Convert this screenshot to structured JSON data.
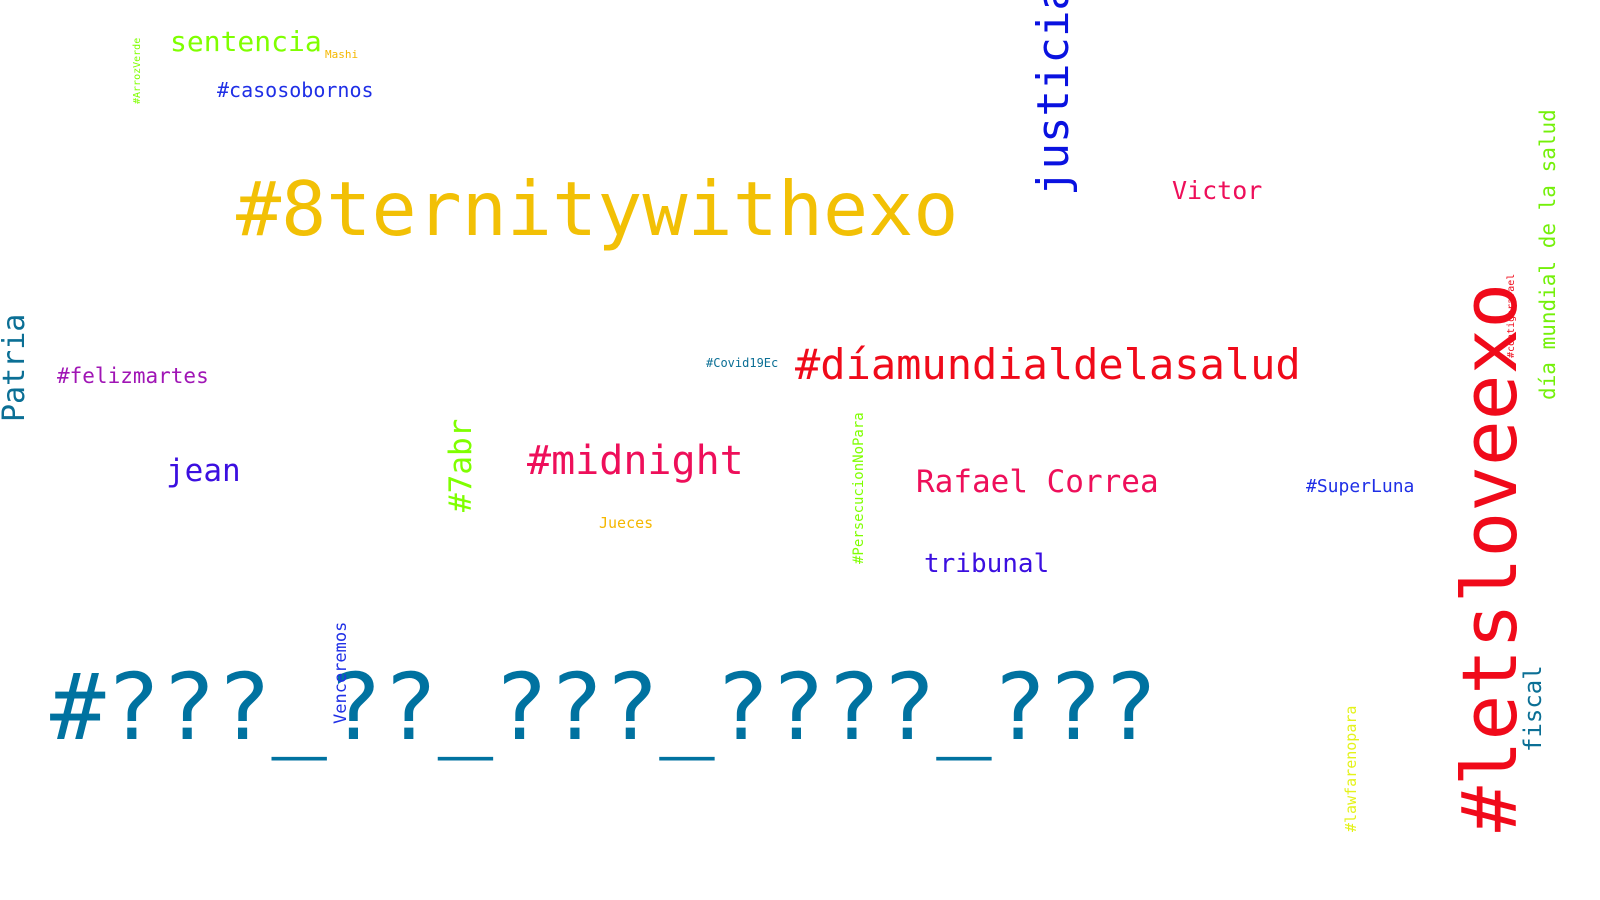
{
  "words": {
    "w01": {
      "text": "#8ternitywithexo",
      "color": "#f2c005"
    },
    "w02": {
      "text": "#???_??_???_????_???",
      "color": "#0072a0"
    },
    "w03": {
      "text": "#letsloveexo",
      "color": "#f00a1a"
    },
    "w04": {
      "text": "#díamundialdelasalud",
      "color": "#f00a1a"
    },
    "w05": {
      "text": "justicia",
      "color": "#0a12e0"
    },
    "w06": {
      "text": "#midnight",
      "color": "#ee0f5a"
    },
    "w07": {
      "text": "Rafael Correa",
      "color": "#ee0f5a"
    },
    "w08": {
      "text": "Patria",
      "color": "#0b6f95"
    },
    "w09": {
      "text": "sentencia",
      "color": "#7fff00"
    },
    "w10": {
      "text": "día mundial de la salud",
      "color": "#74f00a"
    },
    "w11": {
      "text": "jean",
      "color": "#3b0fe0"
    },
    "w12": {
      "text": "#7abr",
      "color": "#7fff00"
    },
    "w13": {
      "text": "tribunal",
      "color": "#3b0fe0"
    },
    "w14": {
      "text": "Victor",
      "color": "#ee0f5a"
    },
    "w15": {
      "text": "#felizmartes",
      "color": "#a015b5"
    },
    "w16": {
      "text": "#casosobornos",
      "color": "#1f2fe6"
    },
    "w17": {
      "text": "fiscal",
      "color": "#0b6f95"
    },
    "w18": {
      "text": "#SuperLuna",
      "color": "#1f2fe6"
    },
    "w19": {
      "text": "Venceremos",
      "color": "#1f2fe6"
    },
    "w20": {
      "text": "#PersecucionNoPara",
      "color": "#7fff00"
    },
    "w21": {
      "text": "#lawfarenopara",
      "color": "#e4f21a"
    },
    "w22": {
      "text": "Jueces",
      "color": "#f5b700"
    },
    "w23": {
      "text": "#Covid19Ec",
      "color": "#0b6f95"
    },
    "w24": {
      "text": "Mashi",
      "color": "#f5b700"
    },
    "w25": {
      "text": "#ArrozVerde",
      "color": "#7fff00"
    },
    "w26": {
      "text": "#contigorafael",
      "color": "#f00a1a"
    }
  }
}
